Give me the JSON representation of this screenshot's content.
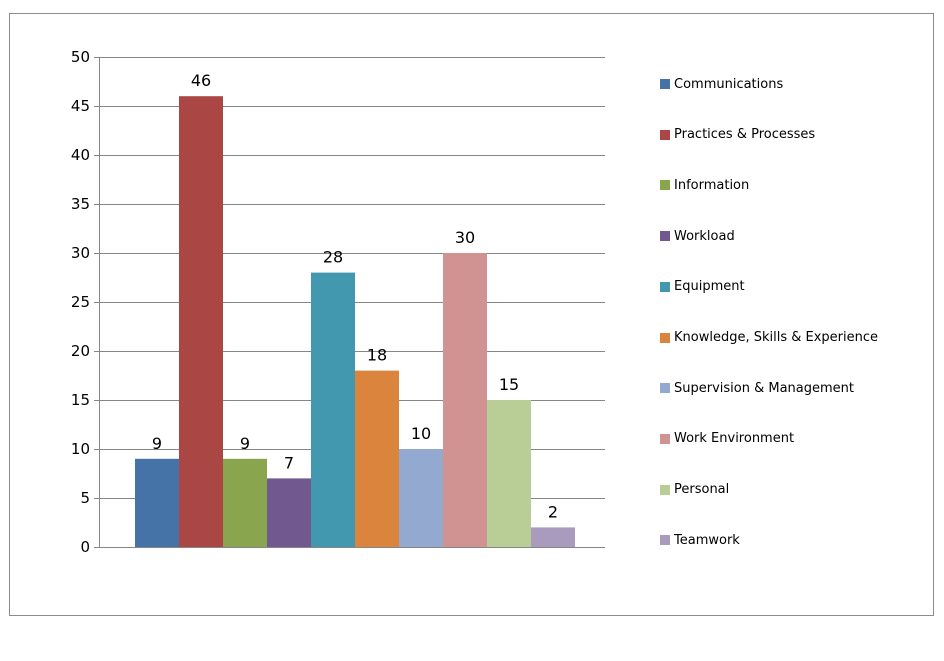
{
  "chart_data": {
    "type": "bar",
    "title": "",
    "xlabel": "",
    "ylabel": "",
    "ylim": [
      0,
      50
    ],
    "yticks": [
      "0",
      "5",
      "10",
      "15",
      "20",
      "25",
      "30",
      "35",
      "40",
      "45",
      "50"
    ],
    "grid": true,
    "legend_position": "right",
    "series": [
      {
        "name": "Communications",
        "value": 9,
        "label": "9",
        "color": "#4572A7"
      },
      {
        "name": "Practices & Processes",
        "value": 46,
        "label": "46",
        "color": "#AA4643"
      },
      {
        "name": "Information",
        "value": 9,
        "label": "9",
        "color": "#89A54E"
      },
      {
        "name": "Workload",
        "value": 7,
        "label": "7",
        "color": "#71588F"
      },
      {
        "name": "Equipment",
        "value": 28,
        "label": "28",
        "color": "#4198AF"
      },
      {
        "name": "Knowledge, Skills & Experience",
        "value": 18,
        "label": "18",
        "color": "#DB843D"
      },
      {
        "name": "Supervision & Management",
        "value": 10,
        "label": "10",
        "color": "#93A9CF"
      },
      {
        "name": "Work Environment",
        "value": 30,
        "label": "30",
        "color": "#D19392"
      },
      {
        "name": "Personal",
        "value": 15,
        "label": "15",
        "color": "#B9CD96"
      },
      {
        "name": "Teamwork",
        "value": 2,
        "label": "2",
        "color": "#A99BBD"
      }
    ]
  }
}
